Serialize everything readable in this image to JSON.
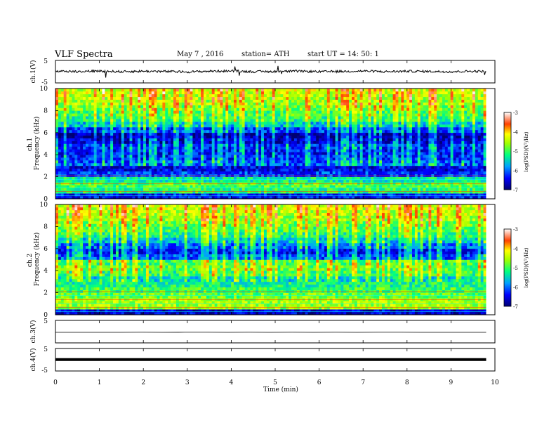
{
  "header": {
    "title": "VLF  Spectra",
    "date": "May 7   , 2016",
    "station": "station= ATH",
    "start": "start  UT  =    14: 50: 1"
  },
  "chart_data": [
    {
      "type": "line",
      "panel": "ch1",
      "ylabel": "ch.1(V)",
      "yticks": [
        "5",
        "-5"
      ],
      "ylim": [
        -5,
        5
      ],
      "x": [
        0,
        0.5,
        1,
        1.5,
        2,
        2.5,
        3,
        3.5,
        4,
        4.5,
        5,
        5.5,
        6,
        6.5,
        7,
        7.5,
        8,
        8.5,
        9,
        9.5,
        9.8
      ],
      "values": [
        0.2,
        0.1,
        0.3,
        0.0,
        0.2,
        0.1,
        -0.1,
        0.2,
        0.3,
        0.0,
        0.1,
        0.2,
        0.0,
        0.1,
        0.3,
        0.0,
        0.2,
        0.1,
        0.0,
        0.2,
        0.1
      ]
    },
    {
      "type": "heatmap",
      "panel": "ch1-spectrogram",
      "ylabel": "ch.1\nFrequency  (kHz)",
      "yticks": [
        "0",
        "2",
        "4",
        "6",
        "8",
        "10"
      ],
      "ylim": [
        0,
        10
      ],
      "xlim": [
        0,
        9.8
      ],
      "colorbar": {
        "label": "log(PSD)(V²/Hz)",
        "ticks": [
          "-3",
          "-4",
          "-5",
          "-6",
          "-7"
        ],
        "range": [
          -7,
          -3
        ]
      },
      "frequency_bands_khz": [
        0,
        0.5,
        1,
        1.5,
        2,
        2.5,
        3,
        3.5,
        4,
        4.5,
        5,
        5.5,
        6,
        6.5,
        7,
        7.5,
        8,
        8.5,
        9,
        9.5
      ],
      "log_psd": [
        -6.4,
        -5.1,
        -4.9,
        -5.3,
        -6.2,
        -6.5,
        -6.1,
        -6.3,
        -6.4,
        -6.3,
        -6.6,
        -6.8,
        -6.2,
        -5.6,
        -5.2,
        -5.0,
        -4.8,
        -4.6,
        -4.5,
        -4.4
      ]
    },
    {
      "type": "heatmap",
      "panel": "ch2-spectrogram",
      "ylabel": "ch.2\nFrequency  (kHz)",
      "yticks": [
        "0",
        "2",
        "4",
        "6",
        "8",
        "10"
      ],
      "ylim": [
        0,
        10
      ],
      "xlim": [
        0,
        9.8
      ],
      "colorbar": {
        "label": "log(PSD)(V²/Hz)",
        "ticks": [
          "-3",
          "-4",
          "-5",
          "-6",
          "-7"
        ],
        "range": [
          -7,
          -3
        ]
      },
      "frequency_bands_khz": [
        0,
        0.5,
        1,
        1.5,
        2,
        2.5,
        3,
        3.5,
        4,
        4.5,
        5,
        5.5,
        6,
        6.5,
        7,
        7.5,
        8,
        8.5,
        9,
        9.5
      ],
      "log_psd": [
        -6.6,
        -4.6,
        -4.5,
        -4.8,
        -5.0,
        -5.2,
        -5.5,
        -5.1,
        -4.9,
        -5.0,
        -6.1,
        -6.4,
        -6.0,
        -5.6,
        -5.2,
        -5.0,
        -4.8,
        -4.6,
        -4.5,
        -4.4
      ]
    },
    {
      "type": "line",
      "panel": "ch3",
      "ylabel": "ch.3(V)",
      "yticks": [
        "5"
      ],
      "ylim": [
        -5,
        5
      ],
      "x": [
        0,
        9.8
      ],
      "values": [
        -0.3,
        -0.3
      ]
    },
    {
      "type": "line",
      "panel": "ch4",
      "ylabel": "ch.4(V)",
      "yticks": [
        "5",
        "-5"
      ],
      "ylim": [
        -5,
        5
      ],
      "x": [
        0,
        9.8
      ],
      "values": [
        0.1,
        0.1
      ]
    }
  ],
  "xaxis": {
    "label": "Time  (min)",
    "ticks": [
      "0",
      "1",
      "2",
      "3",
      "4",
      "5",
      "6",
      "7",
      "8",
      "9",
      "10"
    ],
    "xlim": [
      0,
      10
    ]
  }
}
